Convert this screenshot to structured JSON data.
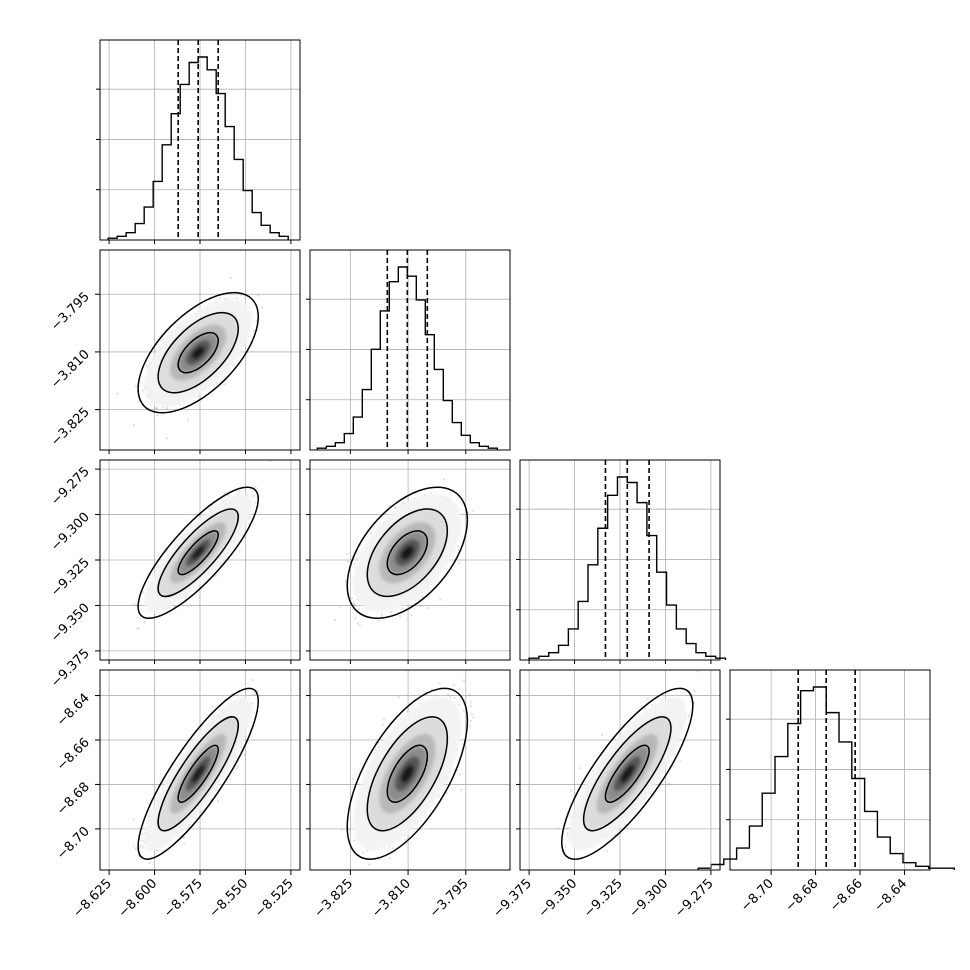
{
  "chart_data": {
    "type": "corner",
    "params": [
      {
        "range": [
          -8.63,
          -8.52
        ],
        "ticks": [
          {
            "value": -8.625,
            "label": "−8.625"
          },
          {
            "value": -8.6,
            "label": "−8.600"
          },
          {
            "value": -8.575,
            "label": "−8.575"
          },
          {
            "value": -8.55,
            "label": "−8.550"
          },
          {
            "value": -8.525,
            "label": "−8.525"
          }
        ],
        "quantiles": [
          -8.587,
          -8.576,
          -8.565
        ]
      },
      {
        "range": [
          -3.8355,
          -3.7835
        ],
        "ticks": [
          {
            "value": -3.825,
            "label": "−3.825"
          },
          {
            "value": -3.81,
            "label": "−3.810"
          },
          {
            "value": -3.795,
            "label": "−3.795"
          }
        ],
        "quantiles": [
          -3.8154,
          -3.8102,
          -3.805
        ]
      },
      {
        "range": [
          -9.38,
          -9.27
        ],
        "ticks": [
          {
            "value": -9.375,
            "label": "−9.375"
          },
          {
            "value": -9.35,
            "label": "−9.350"
          },
          {
            "value": -9.325,
            "label": "−9.325"
          },
          {
            "value": -9.3,
            "label": "−9.300"
          },
          {
            "value": -9.275,
            "label": "−9.275"
          }
        ],
        "quantiles": [
          -9.333,
          -9.321,
          -9.309
        ]
      },
      {
        "range": [
          -8.7185,
          -8.6285
        ],
        "ticks": [
          {
            "value": -8.7,
            "label": "−8.70"
          },
          {
            "value": -8.68,
            "label": "−8.68"
          },
          {
            "value": -8.66,
            "label": "−8.66"
          },
          {
            "value": -8.64,
            "label": "−8.64"
          }
        ],
        "quantiles": [
          -8.6878,
          -8.6752,
          -8.6622
        ]
      }
    ],
    "histograms": [
      {
        "counts": [
          1,
          2,
          4,
          9,
          18,
          32,
          52,
          69,
          85,
          97,
          100,
          93,
          80,
          62,
          44,
          27,
          15,
          8,
          4,
          2
        ]
      },
      {
        "counts": [
          1,
          2,
          4,
          9,
          18,
          33,
          55,
          76,
          92,
          100,
          95,
          82,
          63,
          44,
          27,
          15,
          8,
          4,
          2,
          1
        ]
      },
      {
        "counts": [
          1,
          2,
          4,
          8,
          17,
          32,
          52,
          72,
          90,
          100,
          97,
          86,
          68,
          48,
          30,
          17,
          9,
          4,
          2,
          1
        ]
      },
      {
        "counts": [
          1,
          3,
          6,
          12,
          24,
          42,
          62,
          80,
          98,
          100,
          86,
          70,
          50,
          32,
          18,
          9,
          4,
          2,
          1,
          1
        ]
      }
    ],
    "pairs": [
      {
        "row": 1,
        "col": 0,
        "correlation": 0.6
      },
      {
        "row": 2,
        "col": 0,
        "correlation": 0.82
      },
      {
        "row": 2,
        "col": 1,
        "correlation": 0.5
      },
      {
        "row": 3,
        "col": 0,
        "correlation": 0.85
      },
      {
        "row": 3,
        "col": 1,
        "correlation": 0.62
      },
      {
        "row": 3,
        "col": 2,
        "correlation": 0.8
      }
    ],
    "grid": true,
    "colors": {
      "line": "#000000",
      "points": "#000000",
      "grid": "#b0b0b0"
    }
  }
}
